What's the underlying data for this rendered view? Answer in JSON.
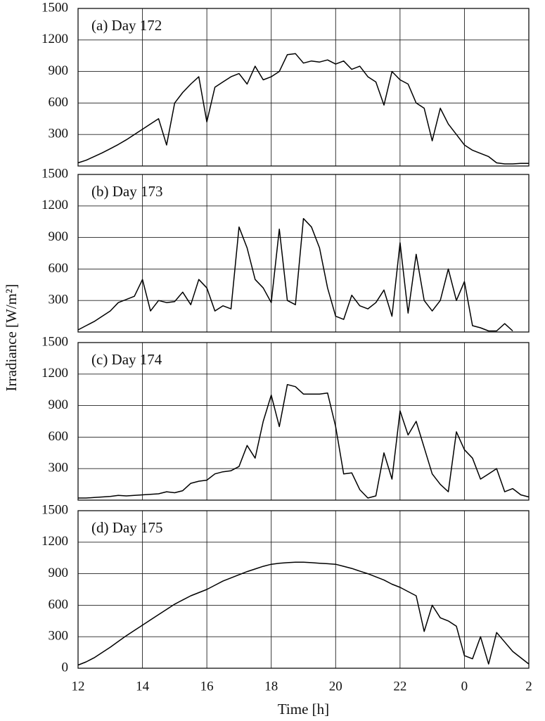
{
  "chart_data": [
    {
      "type": "line",
      "title": "(a) Day 172",
      "x": [
        12,
        12.25,
        12.5,
        12.75,
        13,
        13.25,
        13.5,
        13.75,
        14,
        14.25,
        14.5,
        14.75,
        15,
        15.25,
        15.5,
        15.75,
        16,
        16.25,
        16.5,
        16.75,
        17,
        17.25,
        17.5,
        17.75,
        18,
        18.25,
        18.5,
        18.75,
        19,
        19.25,
        19.5,
        19.75,
        20,
        20.25,
        20.5,
        20.75,
        21,
        21.25,
        21.5,
        21.75,
        22,
        22.25,
        22.5,
        22.75,
        23,
        23.25,
        23.5,
        23.75,
        24,
        24.25,
        24.5,
        24.75,
        25,
        25.25,
        25.5,
        25.75,
        26
      ],
      "values": [
        30,
        55,
        90,
        125,
        165,
        205,
        250,
        300,
        350,
        400,
        450,
        200,
        600,
        700,
        780,
        850,
        420,
        750,
        800,
        850,
        880,
        780,
        950,
        820,
        850,
        900,
        1060,
        1070,
        980,
        1000,
        990,
        1010,
        970,
        1000,
        920,
        950,
        850,
        800,
        580,
        900,
        820,
        780,
        600,
        550,
        240,
        550,
        400,
        300,
        200,
        150,
        120,
        90,
        30,
        20,
        20,
        25,
        25
      ],
      "xlim": [
        12,
        26
      ],
      "ylim": [
        0,
        1500
      ],
      "yticks": [
        300,
        600,
        900,
        1200,
        1500
      ],
      "color": "#000000",
      "grid": true
    },
    {
      "type": "line",
      "title": "(b) Day 173",
      "ylabel": "Irradiance [W/m²]",
      "x": [
        12,
        12.25,
        12.5,
        12.75,
        13,
        13.25,
        13.5,
        13.75,
        14,
        14.25,
        14.5,
        14.75,
        15,
        15.25,
        15.5,
        15.75,
        16,
        16.25,
        16.5,
        16.75,
        17,
        17.25,
        17.5,
        17.75,
        18,
        18.25,
        18.5,
        18.75,
        19,
        19.25,
        19.5,
        19.75,
        20,
        20.25,
        20.5,
        20.75,
        21,
        21.25,
        21.5,
        21.75,
        22,
        22.25,
        22.5,
        22.75,
        23,
        23.25,
        23.5,
        23.75,
        24,
        24.25,
        24.5,
        24.75,
        25,
        25.25,
        25.5,
        25.75,
        26
      ],
      "values": [
        20,
        60,
        100,
        150,
        200,
        280,
        310,
        340,
        500,
        200,
        300,
        280,
        290,
        380,
        260,
        500,
        420,
        200,
        250,
        220,
        1000,
        800,
        500,
        420,
        280,
        980,
        300,
        260,
        1080,
        1000,
        800,
        420,
        150,
        120,
        350,
        250,
        220,
        280,
        400,
        150,
        850,
        180,
        740,
        300,
        200,
        300,
        600,
        300,
        480,
        60,
        40,
        10,
        10,
        80,
        10,
        null,
        null
      ],
      "xlim": [
        12,
        26
      ],
      "ylim": [
        0,
        1500
      ],
      "yticks": [
        300,
        600,
        900,
        1200,
        1500
      ],
      "color": "#000000",
      "grid": true
    },
    {
      "type": "line",
      "title": "(c) Day 174",
      "x": [
        12,
        12.25,
        12.5,
        12.75,
        13,
        13.25,
        13.5,
        13.75,
        14,
        14.25,
        14.5,
        14.75,
        15,
        15.25,
        15.5,
        15.75,
        16,
        16.25,
        16.5,
        16.75,
        17,
        17.25,
        17.5,
        17.75,
        18,
        18.25,
        18.5,
        18.75,
        19,
        19.25,
        19.5,
        19.75,
        20,
        20.25,
        20.5,
        20.75,
        21,
        21.25,
        21.5,
        21.75,
        22,
        22.25,
        22.5,
        22.75,
        23,
        23.25,
        23.5,
        23.75,
        24,
        24.25,
        24.5,
        24.75,
        25,
        25.25,
        25.5,
        25.75,
        26
      ],
      "values": [
        20,
        20,
        25,
        30,
        35,
        45,
        40,
        45,
        50,
        55,
        60,
        80,
        70,
        90,
        160,
        180,
        190,
        250,
        270,
        280,
        320,
        520,
        400,
        750,
        1000,
        700,
        1100,
        1080,
        1010,
        1010,
        1010,
        1020,
        700,
        250,
        260,
        100,
        20,
        40,
        450,
        200,
        850,
        620,
        750,
        500,
        250,
        150,
        80,
        650,
        480,
        400,
        200,
        250,
        300,
        80,
        110,
        50,
        30
      ],
      "xlim": [
        12,
        26
      ],
      "ylim": [
        0,
        1500
      ],
      "yticks": [
        300,
        600,
        900,
        1200,
        1500
      ],
      "color": "#000000",
      "grid": true
    },
    {
      "type": "line",
      "title": "(d) Day 175",
      "xlabel": "Time [h]",
      "x": [
        12,
        12.25,
        12.5,
        12.75,
        13,
        13.25,
        13.5,
        13.75,
        14,
        14.25,
        14.5,
        14.75,
        15,
        15.25,
        15.5,
        15.75,
        16,
        16.25,
        16.5,
        16.75,
        17,
        17.25,
        17.5,
        17.75,
        18,
        18.25,
        18.5,
        18.75,
        19,
        19.25,
        19.5,
        19.75,
        20,
        20.25,
        20.5,
        20.75,
        21,
        21.25,
        21.5,
        21.75,
        22,
        22.25,
        22.5,
        22.75,
        23,
        23.25,
        23.5,
        23.75,
        24,
        24.25,
        24.5,
        24.75,
        25,
        25.25,
        25.5,
        25.75,
        26
      ],
      "values": [
        30,
        60,
        100,
        150,
        200,
        255,
        310,
        360,
        410,
        460,
        510,
        560,
        610,
        650,
        690,
        720,
        750,
        790,
        830,
        860,
        890,
        920,
        945,
        970,
        990,
        1000,
        1005,
        1010,
        1010,
        1005,
        1000,
        995,
        990,
        970,
        950,
        925,
        900,
        870,
        840,
        800,
        770,
        730,
        690,
        350,
        600,
        480,
        450,
        400,
        120,
        90,
        300,
        40,
        340,
        250,
        160,
        100,
        40
      ],
      "xlim": [
        12,
        26
      ],
      "ylim": [
        0,
        1500
      ],
      "yticks": [
        0,
        300,
        600,
        900,
        1200,
        1500
      ],
      "xticks": [
        12,
        14,
        16,
        18,
        20,
        22,
        {
          "value": 24,
          "label": "0"
        },
        {
          "value": 26,
          "label": "2"
        }
      ],
      "color": "#000000",
      "grid": true
    }
  ]
}
